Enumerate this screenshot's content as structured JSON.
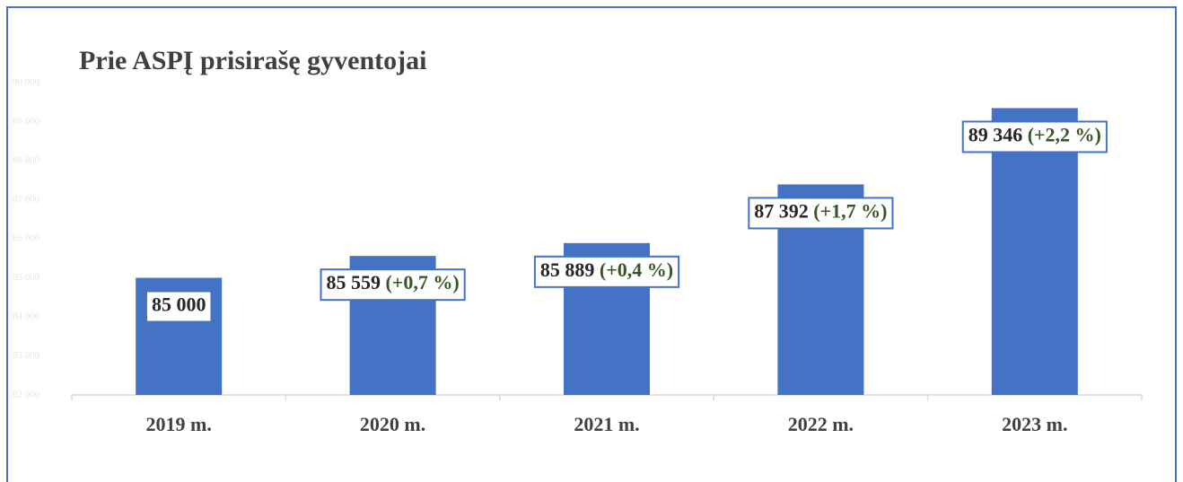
{
  "chart_data": {
    "type": "bar",
    "title": "Prie ASPĮ prisirašę gyventojai",
    "categories": [
      "2019 m.",
      "2020 m.",
      "2021 m.",
      "2022 m.",
      "2023 m."
    ],
    "values": [
      85000,
      85559,
      85889,
      87392,
      89346
    ],
    "value_labels": [
      "85 000",
      "85 559",
      "85 889",
      "87 392",
      "89 346"
    ],
    "change_labels": [
      null,
      "(+0,7 %)",
      "(+0,4 %)",
      "(+1,7 %)",
      "(+2,2 %)"
    ],
    "color": "#4472c4",
    "ylim": [
      82000,
      90000
    ],
    "yticks": [
      {
        "value": 82000,
        "label": "82 000"
      },
      {
        "value": 83000,
        "label": "83 000"
      },
      {
        "value": 84000,
        "label": "84 000"
      },
      {
        "value": 85000,
        "label": "85 000"
      },
      {
        "value": 86000,
        "label": "86 000"
      },
      {
        "value": 87000,
        "label": "87 000"
      },
      {
        "value": 88000,
        "label": "88 000"
      },
      {
        "value": 89000,
        "label": "89 000"
      },
      {
        "value": 90000,
        "label": "90 000"
      }
    ],
    "grid": false
  }
}
